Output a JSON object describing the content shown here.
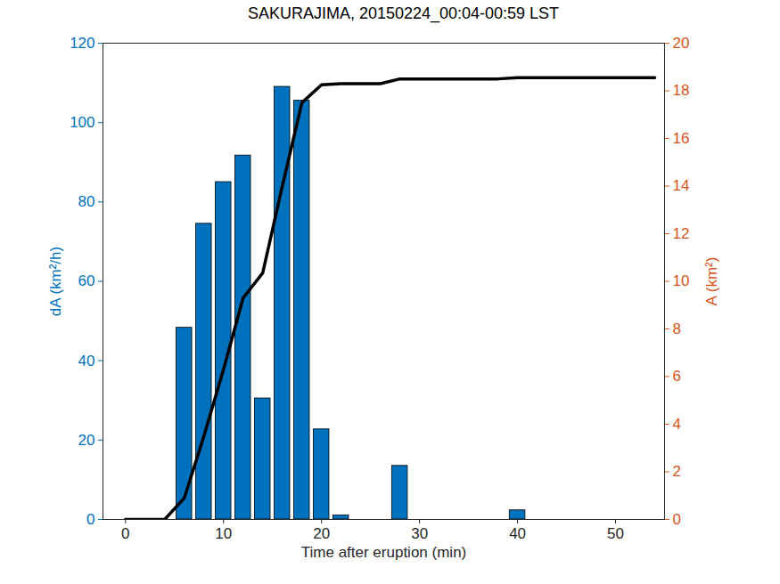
{
  "chart_data": {
    "type": "bar",
    "title": "SAKURAJIMA, 20150224_00:04-00:59 LST",
    "x_label": "Time after eruption (min)",
    "y_label": "dA (km²/h)",
    "y2_label": "A (km²)",
    "xlim": [
      -2.3,
      55
    ],
    "xticks": [
      0,
      10,
      20,
      30,
      40,
      50
    ],
    "ylim": [
      0,
      120
    ],
    "yticks": [
      0,
      20,
      40,
      60,
      80,
      100,
      120
    ],
    "y2lim": [
      0,
      20
    ],
    "y2ticks": [
      0,
      2,
      4,
      6,
      8,
      10,
      12,
      14,
      16,
      18,
      20
    ],
    "y_color": "#0072BD",
    "y2_color": "#D95319",
    "grid": false,
    "series": [
      {
        "type": "bar",
        "color": "#0072BD",
        "x": [
          6,
          8,
          10,
          12,
          14,
          16,
          18,
          20,
          22,
          24,
          26,
          28,
          30,
          32,
          34,
          36,
          38,
          40
        ],
        "values": [
          48.3,
          74.5,
          85,
          91.7,
          30.5,
          109,
          105.5,
          22.7,
          1,
          0,
          0,
          13.5,
          0,
          0,
          0,
          0,
          0,
          2.3
        ]
      },
      {
        "type": "line",
        "axis": "y2",
        "color": "#000000",
        "x": [
          0,
          2,
          4,
          6,
          8,
          10,
          12,
          14,
          16,
          18,
          20,
          22,
          24,
          26,
          28,
          30,
          32,
          34,
          36,
          38,
          40,
          42,
          44,
          46,
          48,
          50,
          52,
          54
        ],
        "values": [
          0,
          0,
          0,
          0.9,
          3.5,
          6.3,
          9.3,
          10.35,
          14,
          17.5,
          18.25,
          18.3,
          18.3,
          18.3,
          18.5,
          18.5,
          18.5,
          18.5,
          18.5,
          18.5,
          18.55,
          18.55,
          18.55,
          18.55,
          18.55,
          18.55,
          18.55,
          18.55
        ]
      }
    ]
  }
}
